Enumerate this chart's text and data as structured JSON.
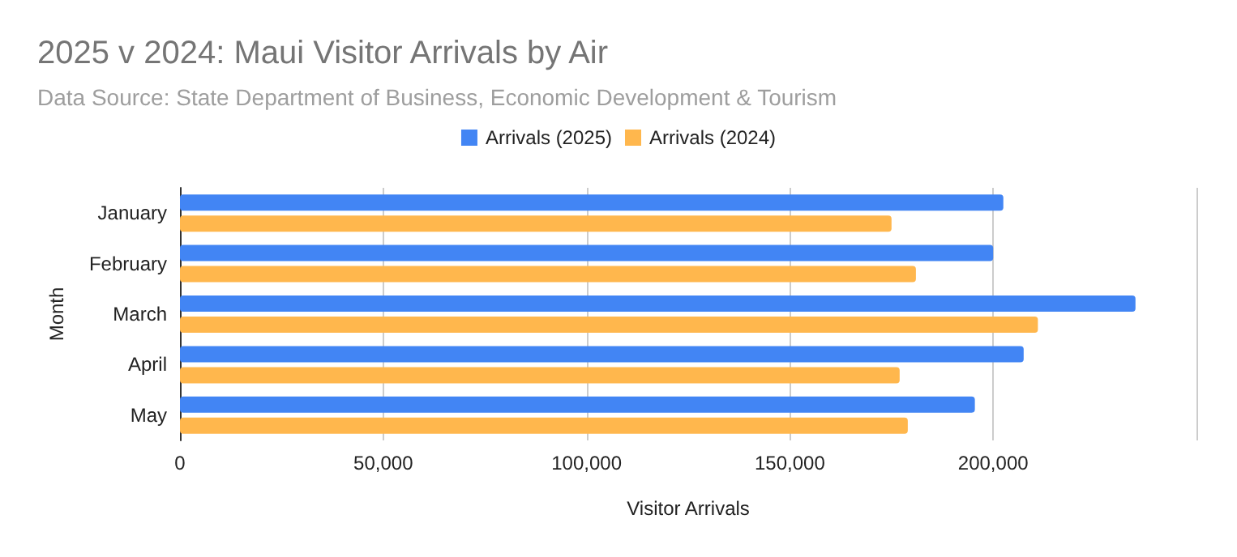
{
  "chart_data": {
    "type": "bar",
    "orientation": "horizontal",
    "title": "2025 v 2024: Maui Visitor Arrivals by Air",
    "subtitle": "Data Source: State Department of Business, Economic Development & Tourism",
    "xlabel": "Visitor Arrivals",
    "ylabel": "Month",
    "categories": [
      "January",
      "February",
      "March",
      "April",
      "May"
    ],
    "series": [
      {
        "name": "Arrivals (2025)",
        "color": "#4285f4",
        "values": [
          202500,
          200000,
          235000,
          207500,
          195500
        ]
      },
      {
        "name": "Arrivals (2024)",
        "color": "#ffb74d",
        "values": [
          175000,
          181000,
          211000,
          177000,
          179000
        ]
      }
    ],
    "xlim": [
      0,
      250000
    ],
    "xticks": [
      0,
      {
        "value": 50000,
        "label": "50,000"
      },
      {
        "value": 100000,
        "label": "100,000"
      },
      {
        "value": 150000,
        "label": "150,000"
      },
      {
        "value": 200000,
        "label": "200,000"
      },
      {
        "value": 250000,
        "label": null
      }
    ],
    "grid": "x",
    "legend": "top"
  }
}
